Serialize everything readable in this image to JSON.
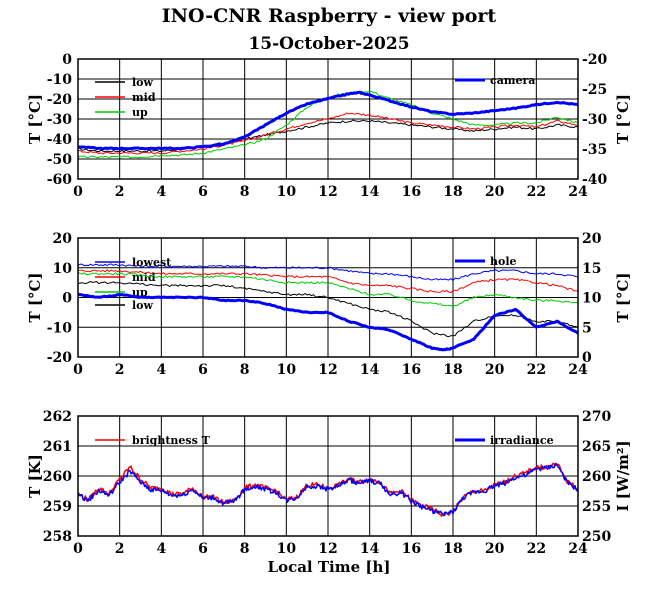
{
  "title": "INO-CNR Raspberry - view port",
  "subtitle": "15-October-2025",
  "xlabel": "Local Time [h]",
  "chart_data": [
    {
      "type": "line",
      "id": "p1",
      "x_ticks": [
        "0",
        "2",
        "4",
        "6",
        "8",
        "10",
        "12",
        "14",
        "16",
        "18",
        "20",
        "22",
        "24"
      ],
      "xlim": [
        0,
        24
      ],
      "ylabel_left": "T [°C]",
      "ylabel_right": "T [°C]",
      "ylim_left": [
        -60,
        0
      ],
      "ylim_right": [
        -40,
        -20
      ],
      "yticks_left": [
        "0",
        "-10",
        "-20",
        "-30",
        "-40",
        "-50",
        "-60"
      ],
      "yticks_right": [
        "-20",
        "-25",
        "-30",
        "-35",
        "-40"
      ],
      "series": [
        {
          "name": "low",
          "axis": "left",
          "color": "#000000",
          "width": 1,
          "x": [
            0,
            1,
            2,
            3,
            4,
            5,
            6,
            7,
            8,
            9,
            10,
            11,
            12,
            13,
            14,
            15,
            16,
            17,
            18,
            19,
            20,
            21,
            22,
            23,
            24
          ],
          "y": [
            -45,
            -46,
            -46,
            -46,
            -46,
            -45,
            -44,
            -42,
            -40,
            -38,
            -36,
            -34,
            -32,
            -31,
            -31,
            -32,
            -33,
            -34,
            -35,
            -36,
            -35,
            -34,
            -35,
            -33,
            -34
          ]
        },
        {
          "name": "mid",
          "axis": "left",
          "color": "#ff0000",
          "width": 1,
          "x": [
            0,
            1,
            2,
            3,
            4,
            5,
            6,
            7,
            8,
            9,
            10,
            11,
            12,
            13,
            14,
            15,
            16,
            17,
            18,
            19,
            20,
            21,
            22,
            23,
            24
          ],
          "y": [
            -46,
            -47,
            -47,
            -47,
            -47,
            -46,
            -45,
            -43,
            -41,
            -38,
            -35,
            -32,
            -30,
            -27,
            -28,
            -30,
            -32,
            -33,
            -34,
            -35,
            -34,
            -33,
            -34,
            -31,
            -33
          ]
        },
        {
          "name": "up",
          "axis": "left",
          "color": "#00cc00",
          "width": 1,
          "x": [
            0,
            1,
            2,
            3,
            4,
            5,
            6,
            7,
            8,
            9,
            10,
            11,
            12,
            13,
            14,
            15,
            16,
            17,
            18,
            19,
            20,
            21,
            22,
            23,
            24
          ],
          "y": [
            -49,
            -49,
            -49,
            -49,
            -48,
            -48,
            -47,
            -45,
            -43,
            -40,
            -33,
            -24,
            -19,
            -17,
            -16,
            -20,
            -23,
            -27,
            -30,
            -33,
            -33,
            -32,
            -32,
            -29,
            -32
          ]
        },
        {
          "name": "camera",
          "axis": "right",
          "color": "#0000ff",
          "width": 3,
          "x": [
            0,
            1,
            2,
            3,
            4,
            5,
            6,
            7,
            8,
            9,
            10,
            11,
            12,
            13,
            13.5,
            14,
            15,
            16,
            17,
            18,
            19,
            20,
            21,
            22,
            23,
            24
          ],
          "y": [
            -34.6,
            -34.9,
            -34.9,
            -34.9,
            -34.9,
            -34.9,
            -34.6,
            -34.2,
            -33,
            -31,
            -29,
            -27.5,
            -26.6,
            -25.8,
            -25.6,
            -26,
            -27,
            -28,
            -28.8,
            -29.2,
            -29,
            -28.6,
            -28.2,
            -27.6,
            -27.2,
            -27.6
          ]
        }
      ]
    },
    {
      "type": "line",
      "id": "p2",
      "x_ticks": [
        "0",
        "2",
        "4",
        "6",
        "8",
        "10",
        "12",
        "14",
        "16",
        "18",
        "20",
        "22",
        "24"
      ],
      "xlim": [
        0,
        24
      ],
      "ylabel_left": "T [°C]",
      "ylabel_right": "T [°C]",
      "ylim_left": [
        -20,
        20
      ],
      "ylim_right": [
        0,
        20
      ],
      "yticks_left": [
        "20",
        "10",
        "0",
        "-10",
        "-20"
      ],
      "yticks_right": [
        "20",
        "15",
        "10",
        "5",
        "0"
      ],
      "series": [
        {
          "name": "lowest",
          "axis": "left",
          "color": "#0000ff",
          "width": 1,
          "x": [
            0,
            1,
            2,
            3,
            4,
            5,
            6,
            7,
            8,
            9,
            10,
            11,
            12,
            13,
            14,
            15,
            16,
            17,
            18,
            19,
            20,
            21,
            22,
            23,
            24
          ],
          "y": [
            11,
            11,
            11,
            10.5,
            10.5,
            10.5,
            10.5,
            10.5,
            10.5,
            10,
            10,
            10,
            10,
            9,
            8,
            8,
            7,
            6,
            6,
            8,
            9,
            9,
            8,
            8,
            7
          ]
        },
        {
          "name": "mid",
          "axis": "left",
          "color": "#ff0000",
          "width": 1,
          "x": [
            0,
            1,
            2,
            3,
            4,
            5,
            6,
            7,
            8,
            9,
            10,
            11,
            12,
            13,
            14,
            15,
            16,
            17,
            18,
            19,
            20,
            21,
            22,
            23,
            24
          ],
          "y": [
            9,
            9,
            9,
            8.5,
            8,
            8,
            8,
            8,
            8,
            7.5,
            7,
            7,
            7,
            5,
            4,
            4,
            3,
            2,
            2,
            5,
            6,
            6,
            5,
            4,
            2
          ]
        },
        {
          "name": "up",
          "axis": "left",
          "color": "#00cc00",
          "width": 1,
          "x": [
            0,
            1,
            2,
            3,
            4,
            5,
            6,
            7,
            8,
            9,
            10,
            11,
            12,
            13,
            14,
            15,
            16,
            17,
            18,
            19,
            20,
            21,
            22,
            23,
            24
          ],
          "y": [
            8,
            8,
            8,
            7.5,
            7,
            7,
            7,
            7,
            7,
            6,
            5,
            5,
            5,
            3,
            1,
            1,
            -1,
            -2,
            -3,
            0,
            1,
            0,
            -1,
            -1,
            -2
          ]
        },
        {
          "name": "low",
          "axis": "left",
          "color": "#000000",
          "width": 1,
          "x": [
            0,
            1,
            2,
            3,
            4,
            5,
            6,
            7,
            8,
            9,
            10,
            11,
            12,
            13,
            14,
            15,
            16,
            17,
            18,
            19,
            20,
            21,
            22,
            23,
            24
          ],
          "y": [
            5,
            5,
            5,
            4.5,
            4,
            4,
            4,
            4,
            3,
            2,
            1,
            1,
            0,
            -2,
            -4,
            -5,
            -8,
            -12,
            -13,
            -8,
            -6,
            -6,
            -8,
            -8,
            -10
          ]
        },
        {
          "name": "hole",
          "axis": "right",
          "color": "#0000ff",
          "width": 3,
          "x": [
            0,
            1,
            2,
            3,
            4,
            5,
            6,
            7,
            8,
            9,
            10,
            11,
            12,
            13,
            14,
            15,
            16,
            17,
            17.5,
            18,
            19,
            20,
            21,
            22,
            23,
            24
          ],
          "y": [
            10.5,
            10,
            10.5,
            10,
            10,
            10,
            10,
            9.5,
            9.5,
            9,
            8,
            7.5,
            7.5,
            6,
            5,
            4.5,
            3,
            1.5,
            1.2,
            1.5,
            3,
            7,
            8,
            5,
            6,
            4
          ]
        }
      ]
    },
    {
      "type": "line",
      "id": "p3",
      "x_ticks": [
        "0",
        "2",
        "4",
        "6",
        "8",
        "10",
        "12",
        "14",
        "16",
        "18",
        "20",
        "22",
        "24"
      ],
      "xlim": [
        0,
        24
      ],
      "ylabel_left": "T [K]",
      "ylabel_right": "I [W/m²]",
      "ylim_left": [
        258,
        262
      ],
      "ylim_right": [
        250,
        270
      ],
      "yticks_left": [
        "262",
        "261",
        "260",
        "259",
        "258"
      ],
      "yticks_right": [
        "270",
        "265",
        "260",
        "255",
        "250"
      ],
      "series": [
        {
          "name": "brightness T",
          "axis": "left",
          "color": "#ff0000",
          "width": 1.5,
          "x": [
            0,
            0.5,
            1,
            1.5,
            2,
            2.5,
            3,
            3.5,
            4,
            4.5,
            5,
            5.5,
            6,
            6.5,
            7,
            7.5,
            8,
            8.5,
            9,
            9.5,
            10,
            10.5,
            11,
            11.5,
            12,
            12.5,
            13,
            13.5,
            14,
            14.5,
            15,
            15.5,
            16,
            16.5,
            17,
            17.5,
            18,
            18.5,
            19,
            19.5,
            20,
            20.5,
            21,
            21.5,
            22,
            22.5,
            23,
            23.5,
            24
          ],
          "y": [
            259.4,
            259.2,
            259.6,
            259.4,
            259.9,
            260.3,
            259.9,
            259.6,
            259.6,
            259.4,
            259.4,
            259.6,
            259.3,
            259.3,
            259.1,
            259.2,
            259.6,
            259.7,
            259.6,
            259.5,
            259.2,
            259.3,
            259.7,
            259.7,
            259.6,
            259.7,
            259.9,
            259.8,
            259.9,
            259.8,
            259.4,
            259.5,
            259.2,
            259.0,
            258.9,
            258.7,
            258.8,
            259.3,
            259.5,
            259.5,
            259.7,
            259.8,
            260.0,
            260.1,
            260.3,
            260.3,
            260.4,
            259.8,
            259.6
          ]
        },
        {
          "name": "irradiance",
          "axis": "right",
          "color": "#0000ff",
          "width": 1.5,
          "x": [
            0,
            0.5,
            1,
            1.5,
            2,
            2.5,
            3,
            3.5,
            4,
            4.5,
            5,
            5.5,
            6,
            6.5,
            7,
            7.5,
            8,
            8.5,
            9,
            9.5,
            10,
            10.5,
            11,
            11.5,
            12,
            12.5,
            13,
            13.5,
            14,
            14.5,
            15,
            15.5,
            16,
            16.5,
            17,
            17.5,
            18,
            18.5,
            19,
            19.5,
            20,
            20.5,
            21,
            21.5,
            22,
            22.5,
            23,
            23.5,
            24
          ],
          "y": [
            256.8,
            256,
            257.6,
            256.8,
            259,
            260.8,
            259,
            257.7,
            257.6,
            256.8,
            256.8,
            257.8,
            256.3,
            256.4,
            255.4,
            255.8,
            257.7,
            258.3,
            257.8,
            257.3,
            255.9,
            256.4,
            258.3,
            258.3,
            257.8,
            258.4,
            259.3,
            258.8,
            259.2,
            258.8,
            256.8,
            257.3,
            255.8,
            254.9,
            254.2,
            253.6,
            254.0,
            256.4,
            257.3,
            257.5,
            258.4,
            258.8,
            259.8,
            260.1,
            261.2,
            261.3,
            261.9,
            258.8,
            257.7
          ]
        }
      ]
    }
  ]
}
